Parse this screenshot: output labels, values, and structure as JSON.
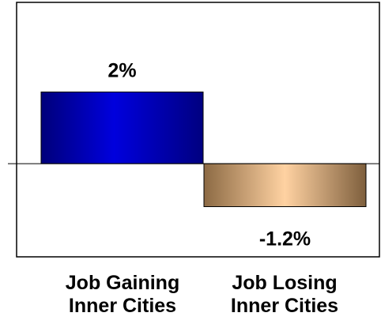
{
  "chart_data": {
    "type": "bar",
    "categories": [
      [
        "Job Gaining",
        "Inner Cities"
      ],
      [
        "Job Losing",
        "Inner Cities"
      ]
    ],
    "values": [
      2,
      -1.2
    ],
    "data_labels": [
      "2%",
      "-1.2%"
    ],
    "unit": "%",
    "ylim": [
      -2.6,
      4.5
    ],
    "grid": false,
    "legend": "none",
    "colors": {
      "positive_bar": "#0000cc",
      "negative_bar": "#f5c592",
      "axis": "#000000",
      "frame": "#000000"
    }
  }
}
